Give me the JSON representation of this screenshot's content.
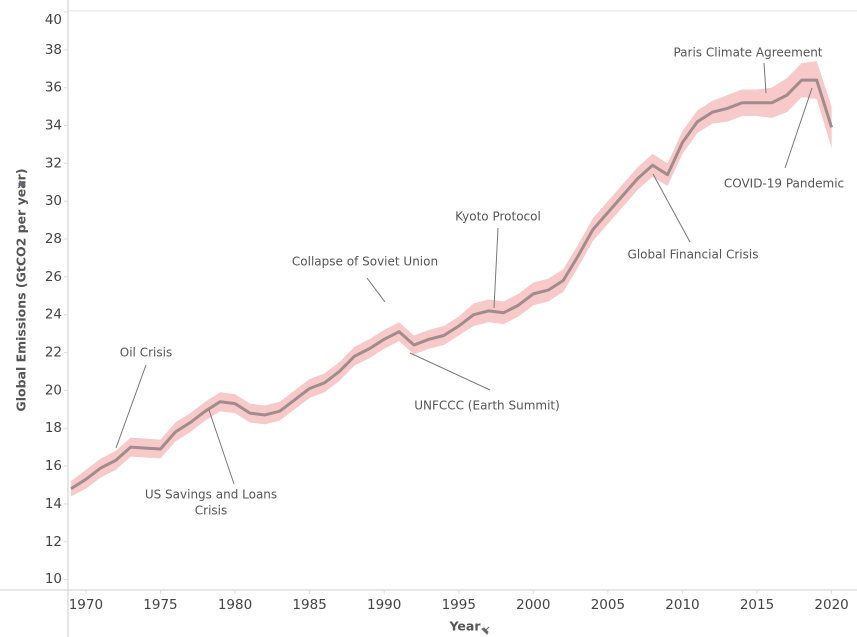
{
  "chart_data": {
    "type": "line",
    "x_label": "Year",
    "y_label": "Global Emissions (GtCO2 per year)",
    "x": [
      1969,
      1970,
      1971,
      1972,
      1973,
      1974,
      1975,
      1976,
      1977,
      1978,
      1979,
      1980,
      1981,
      1982,
      1983,
      1984,
      1985,
      1986,
      1987,
      1988,
      1989,
      1990,
      1991,
      1992,
      1993,
      1994,
      1995,
      1996,
      1997,
      1998,
      1999,
      2000,
      2001,
      2002,
      2003,
      2004,
      2005,
      2006,
      2007,
      2008,
      2009,
      2010,
      2011,
      2012,
      2013,
      2014,
      2015,
      2016,
      2017,
      2018,
      2019,
      2020
    ],
    "series": [
      {
        "name": "Emissions",
        "color": "#a08c8c",
        "values": [
          14.8,
          15.3,
          15.9,
          16.3,
          17.0,
          16.95,
          16.9,
          17.8,
          18.3,
          18.9,
          19.4,
          19.3,
          18.8,
          18.7,
          18.9,
          19.5,
          20.1,
          20.4,
          21.0,
          21.8,
          22.2,
          22.7,
          23.1,
          22.4,
          22.7,
          22.9,
          23.4,
          24.0,
          24.2,
          24.1,
          24.5,
          25.1,
          25.3,
          25.8,
          27.1,
          28.5,
          29.4,
          30.3,
          31.2,
          31.9,
          31.4,
          33.1,
          34.2,
          34.7,
          34.9,
          35.2,
          35.2,
          35.2,
          35.6,
          36.4,
          36.4,
          33.9
        ]
      },
      {
        "name": "Upper",
        "color": "#f8c9c9",
        "values": [
          15.2,
          15.8,
          16.4,
          16.8,
          17.5,
          17.45,
          17.4,
          18.3,
          18.8,
          19.4,
          19.9,
          19.8,
          19.3,
          19.2,
          19.4,
          20.0,
          20.6,
          20.9,
          21.5,
          22.3,
          22.7,
          23.2,
          23.6,
          22.9,
          23.2,
          23.4,
          23.9,
          24.6,
          24.8,
          24.7,
          25.1,
          25.7,
          25.9,
          26.4,
          27.7,
          29.1,
          30.0,
          30.9,
          31.8,
          32.5,
          32.0,
          33.7,
          34.8,
          35.3,
          35.6,
          35.9,
          35.9,
          36.0,
          36.5,
          37.3,
          37.4,
          35.0
        ]
      },
      {
        "name": "Lower",
        "color": "#f8c9c9",
        "values": [
          14.4,
          14.8,
          15.4,
          15.8,
          16.5,
          16.45,
          16.4,
          17.3,
          17.8,
          18.4,
          18.9,
          18.8,
          18.3,
          18.2,
          18.4,
          19.0,
          19.6,
          19.9,
          20.5,
          21.3,
          21.7,
          22.2,
          22.6,
          21.9,
          22.2,
          22.4,
          22.9,
          23.4,
          23.6,
          23.5,
          23.9,
          24.5,
          24.7,
          25.2,
          26.5,
          27.9,
          28.8,
          29.7,
          30.6,
          31.3,
          30.8,
          32.5,
          33.6,
          34.1,
          34.2,
          34.5,
          34.5,
          34.4,
          34.7,
          35.5,
          35.4,
          32.8
        ]
      }
    ],
    "xlim": [
      1968.8,
      2021.1
    ],
    "xticks": [
      1970,
      1975,
      1980,
      1985,
      1990,
      1995,
      2000,
      2005,
      2010,
      2015,
      2020
    ],
    "ylim": [
      9.45,
      40.05
    ],
    "yticks": [
      10,
      12,
      14,
      16,
      18,
      20,
      22,
      24,
      26,
      28,
      30,
      32,
      34,
      36,
      38,
      40
    ],
    "annotations": [
      [
        "Oil Crisis"
      ],
      [
        "US Savings and Loans",
        "Crisis"
      ],
      [
        "Collapse of Soviet Union"
      ],
      [
        "UNFCCC (Earth Summit)"
      ],
      [
        "Kyoto Protocol"
      ],
      [
        "Global Financial Crisis"
      ],
      [
        "Paris Climate Agreement"
      ],
      [
        "COVID-19 Pandemic"
      ]
    ]
  }
}
